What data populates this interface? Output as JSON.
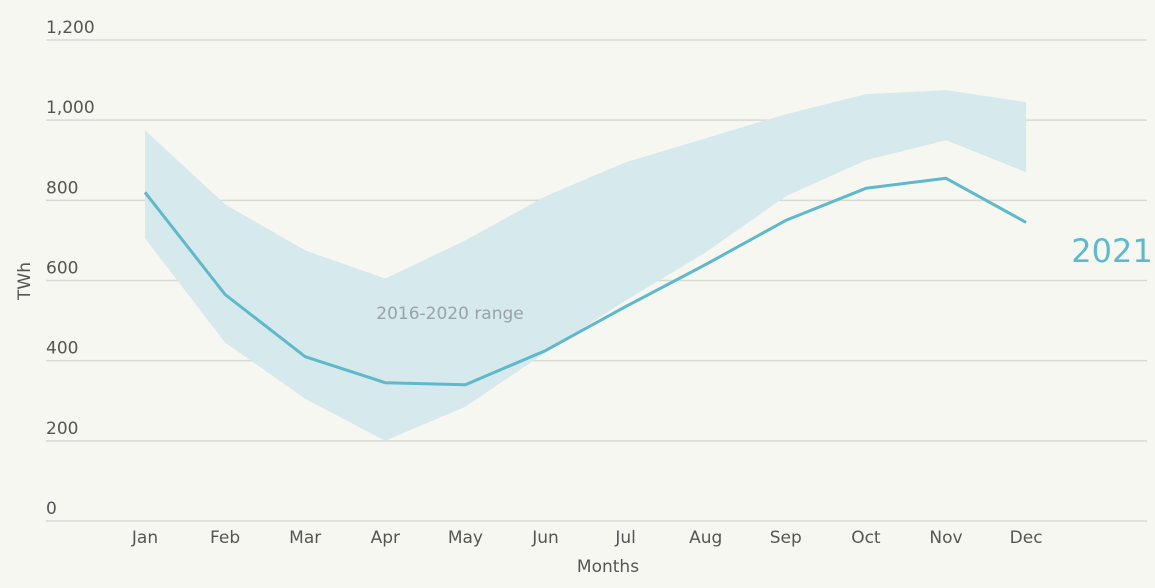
{
  "chart_data": {
    "type": "line",
    "xlabel": "Months",
    "ylabel": "TWh",
    "ylim": [
      0,
      1200
    ],
    "yticks": [
      0,
      200,
      400,
      600,
      800,
      1000,
      1200
    ],
    "ytick_labels": [
      "0",
      "200",
      "400",
      "600",
      "800",
      "1,000",
      "1,200"
    ],
    "categories": [
      "Jan",
      "Feb",
      "Mar",
      "Apr",
      "May",
      "Jun",
      "Jul",
      "Aug",
      "Sep",
      "Oct",
      "Nov",
      "Dec"
    ],
    "grid": true,
    "range_band": {
      "label": "2016-2020 range",
      "lower": [
        705,
        445,
        305,
        200,
        285,
        420,
        550,
        670,
        810,
        900,
        950,
        870
      ],
      "upper": [
        975,
        790,
        675,
        605,
        700,
        810,
        895,
        955,
        1015,
        1065,
        1075,
        1045
      ]
    },
    "series": [
      {
        "name": "2021",
        "values": [
          820,
          565,
          410,
          345,
          340,
          425,
          535,
          640,
          750,
          830,
          855,
          745
        ]
      }
    ],
    "colors": {
      "background": "#f7f7f2",
      "grid": "#d9d9d4",
      "band": "#d6e9ed",
      "line": "#5fb9cb",
      "range_label": "#9aa3a5"
    }
  }
}
